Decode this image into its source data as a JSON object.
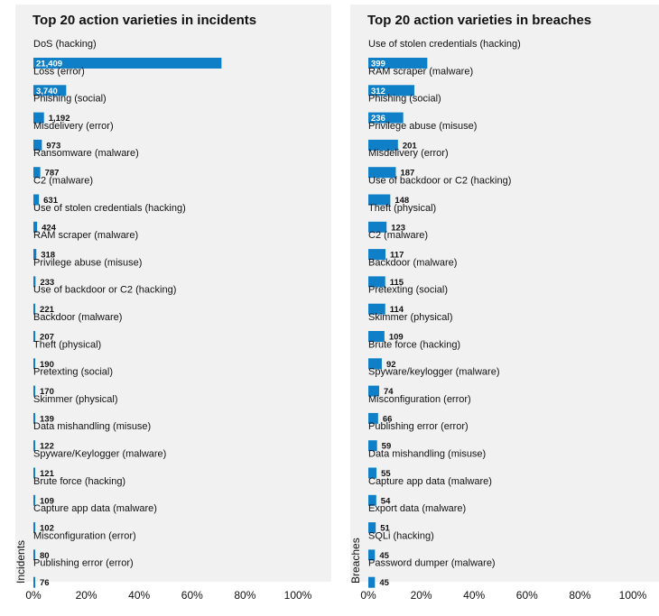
{
  "chart_data": [
    {
      "type": "bar",
      "title": "Top 20 action varieties in incidents",
      "ylabel": "Incidents",
      "xlabel": "",
      "xlim": [
        0,
        100
      ],
      "x_ticks": [
        "0%",
        "20%",
        "40%",
        "60%",
        "80%",
        "100%"
      ],
      "bar_color": "#0f7fc8",
      "grid": false,
      "categories": [
        "DoS (hacking)",
        "Loss (error)",
        "Phishing (social)",
        "Misdelivery (error)",
        "Ransomware (malware)",
        "C2 (malware)",
        "Use of stolen credentials (hacking)",
        "RAM scraper (malware)",
        "Privilege abuse (misuse)",
        "Use of backdoor or C2 (hacking)",
        "Backdoor (malware)",
        "Theft (physical)",
        "Pretexting (social)",
        "Skimmer (physical)",
        "Data mishandling (misuse)",
        "Spyware/Keylogger (malware)",
        "Brute force (hacking)",
        "Capture app data (malware)",
        "Misconfiguration (error)",
        "Publishing error (error)"
      ],
      "labels": [
        "21,409",
        "3,740",
        "1,192",
        "973",
        "787",
        "631",
        "424",
        "318",
        "233",
        "221",
        "207",
        "190",
        "170",
        "139",
        "122",
        "121",
        "109",
        "102",
        "80",
        "76"
      ],
      "values": [
        71.1,
        12.4,
        4.0,
        3.2,
        2.6,
        2.1,
        1.4,
        1.1,
        0.8,
        0.7,
        0.7,
        0.6,
        0.6,
        0.5,
        0.4,
        0.4,
        0.4,
        0.3,
        0.3,
        0.3
      ]
    },
    {
      "type": "bar",
      "title": "Top 20 action varieties in breaches",
      "ylabel": "Breaches",
      "xlabel": "",
      "xlim": [
        0,
        100
      ],
      "x_ticks": [
        "0%",
        "20%",
        "40%",
        "60%",
        "80%",
        "100%"
      ],
      "bar_color": "#0f7fc8",
      "grid": false,
      "categories": [
        "Use of stolen credentials (hacking)",
        "RAM scraper (malware)",
        "Phishing (social)",
        "Privilege abuse (misuse)",
        "Misdelivery (error)",
        "Use of backdoor or C2 (hacking)",
        "Theft (physical)",
        "C2 (malware)",
        "Backdoor (malware)",
        "Pretexting (social)",
        "Skimmer (physical)",
        "Brute force (hacking)",
        "Spyware/keylogger (malware)",
        "Misconfiguration (error)",
        "Publishing error (error)",
        "Data mishandling (misuse)",
        "Capture app data (malware)",
        "Export data (malware)",
        "SQLi (hacking)",
        "Password dumper (malware)"
      ],
      "labels": [
        "399",
        "312",
        "236",
        "201",
        "187",
        "148",
        "123",
        "117",
        "115",
        "114",
        "109",
        "92",
        "74",
        "66",
        "59",
        "55",
        "54",
        "51",
        "45",
        "45"
      ],
      "values": [
        22.3,
        17.4,
        13.2,
        11.2,
        10.4,
        8.3,
        6.9,
        6.5,
        6.4,
        6.4,
        6.1,
        5.1,
        4.1,
        3.7,
        3.3,
        3.1,
        3.0,
        2.8,
        2.5,
        2.5
      ]
    }
  ]
}
